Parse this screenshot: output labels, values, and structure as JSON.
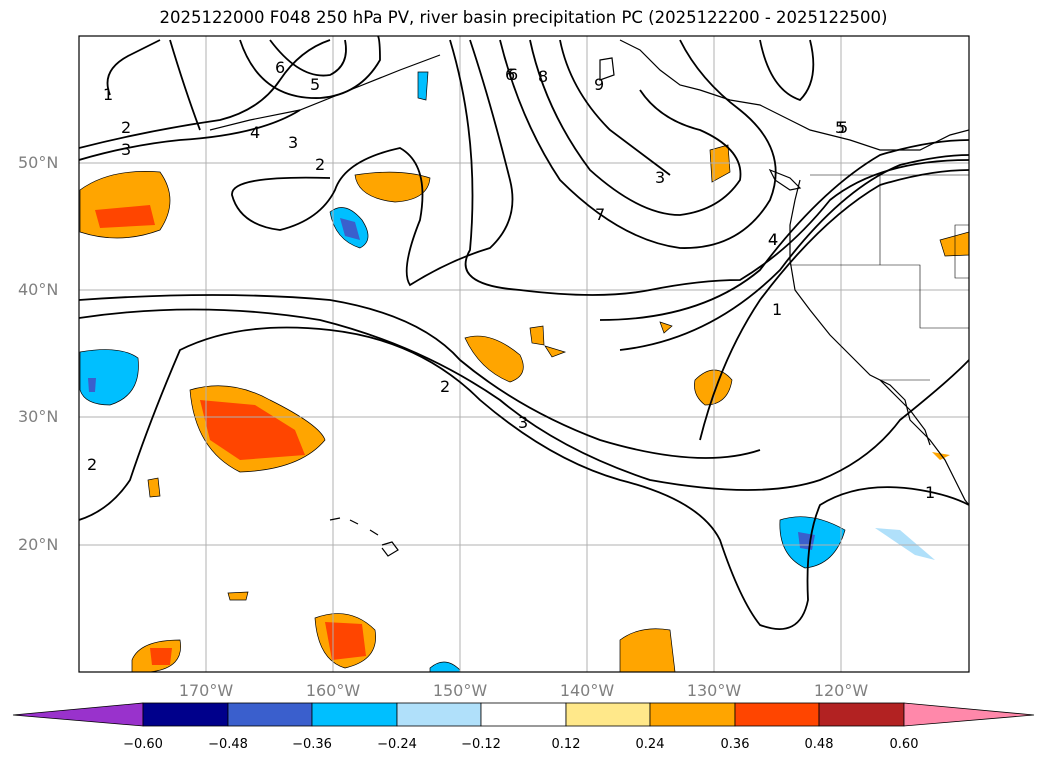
{
  "title": "2025122000 F048 250 hPa PV, river basin precipitation PC (2025122200 - 2025122500)",
  "lat_labels": [
    "50°N",
    "40°N",
    "30°N",
    "20°N"
  ],
  "lon_labels": [
    "170°W",
    "160°W",
    "150°W",
    "140°W",
    "130°W",
    "120°W"
  ],
  "contour_labels": [
    "1",
    "2",
    "3",
    "4",
    "5",
    "6",
    "7",
    "8",
    "9",
    "6",
    "5",
    "4",
    "2",
    "3",
    "1",
    "2",
    "3",
    "4",
    "5",
    "6",
    "1",
    "2",
    "3"
  ],
  "colorbar": {
    "ticks": [
      "−0.60",
      "−0.48",
      "−0.36",
      "−0.24",
      "−0.12",
      "0.12",
      "0.24",
      "0.36",
      "0.48",
      "0.60"
    ],
    "colors": [
      "#9932cc",
      "#00008b",
      "#3a5fcd",
      "#00bfff",
      "#b0e0fa",
      "#ffffff",
      "#ffe88a",
      "#ffa500",
      "#ff4500",
      "#b22222",
      "#ff88aa"
    ]
  },
  "colors": {
    "frame": "#000000",
    "grid": "#b0b0b0",
    "coast": "#000000"
  }
}
